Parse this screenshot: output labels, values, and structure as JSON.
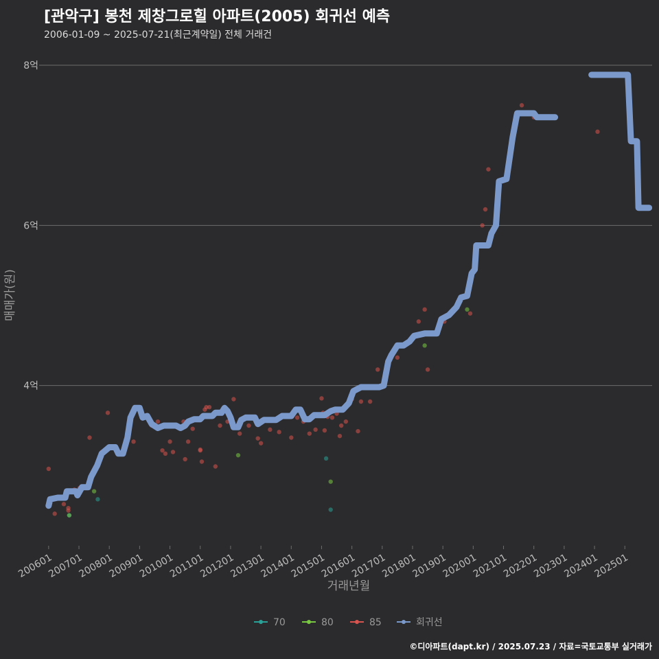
{
  "header": {
    "title": "[관악구] 봉천 제창그로힐 아파트(2005) 회귀선 예측",
    "subtitle": "2006-01-09 ~ 2025-07-21(최근계약일) 전체 거래건"
  },
  "footer": {
    "caption": "©디아파트(dapt.kr) / 2025.07.23 / 자료=국토교통부 실거래가"
  },
  "colors": {
    "s70": "#2aa198",
    "s80": "#7ac943",
    "s85": "#d9534f",
    "line": "#7b9acb",
    "grid": "#6e6e6e"
  },
  "chart_data": {
    "type": "scatter",
    "title": "[관악구] 봉천 제창그로힐 아파트(2005) 회귀선 예측",
    "xlabel": "거래년월",
    "ylabel": "매매가(원)",
    "ylim": [
      2.0,
      8.3
    ],
    "xlim": [
      2005.8,
      2025.9
    ],
    "yticks": [
      {
        "v": 4,
        "label": "4억"
      },
      {
        "v": 6,
        "label": "6억"
      },
      {
        "v": 8,
        "label": "8억"
      }
    ],
    "xticks": [
      {
        "v": 2006,
        "label": "200601"
      },
      {
        "v": 2007,
        "label": "200701"
      },
      {
        "v": 2008,
        "label": "200801"
      },
      {
        "v": 2009,
        "label": "200901"
      },
      {
        "v": 2010,
        "label": "201001"
      },
      {
        "v": 2011,
        "label": "201101"
      },
      {
        "v": 2012,
        "label": "201201"
      },
      {
        "v": 2013,
        "label": "201301"
      },
      {
        "v": 2014,
        "label": "201401"
      },
      {
        "v": 2015,
        "label": "201501"
      },
      {
        "v": 2016,
        "label": "201601"
      },
      {
        "v": 2017,
        "label": "201701"
      },
      {
        "v": 2018,
        "label": "201801"
      },
      {
        "v": 2019,
        "label": "201901"
      },
      {
        "v": 2020,
        "label": "202001"
      },
      {
        "v": 2021,
        "label": "202101"
      },
      {
        "v": 2022,
        "label": "202201"
      },
      {
        "v": 2023,
        "label": "202301"
      },
      {
        "v": 2024,
        "label": "202401"
      },
      {
        "v": 2025,
        "label": "202501"
      }
    ],
    "legend": {
      "position": "bottom",
      "items": [
        "70",
        "80",
        "85",
        "회귀선"
      ]
    },
    "series": [
      {
        "name": "70",
        "points": [
          [
            2006.68,
            2.38
          ],
          [
            2007.62,
            2.58
          ],
          [
            2015.15,
            3.09
          ],
          [
            2015.3,
            2.45
          ]
        ]
      },
      {
        "name": "80",
        "points": [
          [
            2006.68,
            2.38
          ],
          [
            2007.5,
            2.68
          ],
          [
            2012.25,
            3.13
          ],
          [
            2015.3,
            2.8
          ],
          [
            2018.4,
            4.5
          ],
          [
            2019.8,
            4.95
          ]
        ]
      },
      {
        "name": "85",
        "points": [
          [
            2006.0,
            2.96
          ],
          [
            2006.2,
            2.4
          ],
          [
            2006.5,
            2.52
          ],
          [
            2006.65,
            2.47
          ],
          [
            2006.65,
            2.44
          ],
          [
            2006.85,
            2.7
          ],
          [
            2007.02,
            2.72
          ],
          [
            2007.35,
            3.35
          ],
          [
            2007.75,
            3.17
          ],
          [
            2007.95,
            3.66
          ],
          [
            2008.8,
            3.3
          ],
          [
            2009.4,
            3.5
          ],
          [
            2009.6,
            3.55
          ],
          [
            2009.75,
            3.19
          ],
          [
            2009.85,
            3.15
          ],
          [
            2010.0,
            3.3
          ],
          [
            2010.1,
            3.17
          ],
          [
            2010.3,
            3.47
          ],
          [
            2010.45,
            3.55
          ],
          [
            2010.5,
            3.08
          ],
          [
            2010.6,
            3.3
          ],
          [
            2010.75,
            3.46
          ],
          [
            2011.0,
            3.19
          ],
          [
            2011.0,
            3.2
          ],
          [
            2011.05,
            3.05
          ],
          [
            2011.15,
            3.7
          ],
          [
            2011.2,
            3.73
          ],
          [
            2011.3,
            3.73
          ],
          [
            2011.5,
            2.99
          ],
          [
            2011.65,
            3.5
          ],
          [
            2011.9,
            3.55
          ],
          [
            2012.1,
            3.83
          ],
          [
            2012.3,
            3.4
          ],
          [
            2012.6,
            3.5
          ],
          [
            2012.9,
            3.34
          ],
          [
            2013.0,
            3.28
          ],
          [
            2013.3,
            3.45
          ],
          [
            2013.6,
            3.42
          ],
          [
            2014.0,
            3.35
          ],
          [
            2014.2,
            3.6
          ],
          [
            2014.4,
            3.55
          ],
          [
            2014.6,
            3.4
          ],
          [
            2014.8,
            3.45
          ],
          [
            2015.0,
            3.84
          ],
          [
            2015.05,
            3.66
          ],
          [
            2015.1,
            3.44
          ],
          [
            2015.15,
            3.62
          ],
          [
            2015.2,
            3.61
          ],
          [
            2015.35,
            3.6
          ],
          [
            2015.5,
            3.65
          ],
          [
            2015.6,
            3.37
          ],
          [
            2015.65,
            3.5
          ],
          [
            2015.8,
            3.55
          ],
          [
            2016.0,
            3.83
          ],
          [
            2016.2,
            3.43
          ],
          [
            2016.3,
            3.8
          ],
          [
            2016.6,
            3.8
          ],
          [
            2016.85,
            4.2
          ],
          [
            2017.0,
            4.0
          ],
          [
            2017.5,
            4.35
          ],
          [
            2018.2,
            4.8
          ],
          [
            2018.4,
            4.95
          ],
          [
            2018.5,
            4.2
          ],
          [
            2019.05,
            4.8
          ],
          [
            2019.5,
            5.05
          ],
          [
            2019.9,
            4.9
          ],
          [
            2020.3,
            6.0
          ],
          [
            2020.4,
            6.2
          ],
          [
            2020.5,
            6.7
          ],
          [
            2021.6,
            7.5
          ],
          [
            2022.0,
            7.35
          ],
          [
            2024.1,
            7.17
          ]
        ]
      }
    ],
    "regression": [
      [
        2006.0,
        2.5
      ],
      [
        2006.05,
        2.58
      ],
      [
        2006.3,
        2.6
      ],
      [
        2006.55,
        2.6
      ],
      [
        2006.6,
        2.68
      ],
      [
        2006.9,
        2.68
      ],
      [
        2006.95,
        2.63
      ],
      [
        2007.1,
        2.73
      ],
      [
        2007.3,
        2.73
      ],
      [
        2007.4,
        2.86
      ],
      [
        2007.6,
        3.0
      ],
      [
        2007.75,
        3.15
      ],
      [
        2008.0,
        3.23
      ],
      [
        2008.2,
        3.23
      ],
      [
        2008.3,
        3.15
      ],
      [
        2008.45,
        3.15
      ],
      [
        2008.6,
        3.35
      ],
      [
        2008.7,
        3.6
      ],
      [
        2008.85,
        3.72
      ],
      [
        2009.0,
        3.72
      ],
      [
        2009.1,
        3.6
      ],
      [
        2009.25,
        3.62
      ],
      [
        2009.4,
        3.52
      ],
      [
        2009.6,
        3.47
      ],
      [
        2009.8,
        3.5
      ],
      [
        2010.2,
        3.5
      ],
      [
        2010.35,
        3.47
      ],
      [
        2010.5,
        3.5
      ],
      [
        2010.6,
        3.55
      ],
      [
        2010.8,
        3.58
      ],
      [
        2011.0,
        3.58
      ],
      [
        2011.1,
        3.62
      ],
      [
        2011.4,
        3.62
      ],
      [
        2011.5,
        3.66
      ],
      [
        2011.7,
        3.66
      ],
      [
        2011.8,
        3.72
      ],
      [
        2011.9,
        3.68
      ],
      [
        2012.0,
        3.6
      ],
      [
        2012.1,
        3.48
      ],
      [
        2012.25,
        3.48
      ],
      [
        2012.35,
        3.57
      ],
      [
        2012.5,
        3.6
      ],
      [
        2012.8,
        3.6
      ],
      [
        2012.9,
        3.52
      ],
      [
        2013.1,
        3.57
      ],
      [
        2013.5,
        3.57
      ],
      [
        2013.7,
        3.62
      ],
      [
        2014.0,
        3.62
      ],
      [
        2014.15,
        3.7
      ],
      [
        2014.3,
        3.7
      ],
      [
        2014.45,
        3.58
      ],
      [
        2014.6,
        3.58
      ],
      [
        2014.75,
        3.63
      ],
      [
        2015.1,
        3.63
      ],
      [
        2015.3,
        3.68
      ],
      [
        2015.45,
        3.7
      ],
      [
        2015.7,
        3.7
      ],
      [
        2015.9,
        3.78
      ],
      [
        2016.05,
        3.93
      ],
      [
        2016.3,
        3.98
      ],
      [
        2016.9,
        3.98
      ],
      [
        2017.05,
        4.0
      ],
      [
        2017.2,
        4.3
      ],
      [
        2017.3,
        4.38
      ],
      [
        2017.5,
        4.5
      ],
      [
        2017.7,
        4.5
      ],
      [
        2017.9,
        4.55
      ],
      [
        2018.05,
        4.62
      ],
      [
        2018.4,
        4.65
      ],
      [
        2018.8,
        4.65
      ],
      [
        2018.95,
        4.83
      ],
      [
        2019.2,
        4.88
      ],
      [
        2019.45,
        4.98
      ],
      [
        2019.6,
        5.1
      ],
      [
        2019.8,
        5.12
      ],
      [
        2019.95,
        5.4
      ],
      [
        2020.05,
        5.45
      ],
      [
        2020.1,
        5.75
      ],
      [
        2020.5,
        5.75
      ],
      [
        2020.6,
        5.9
      ],
      [
        2020.75,
        6.0
      ],
      [
        2020.85,
        6.55
      ],
      [
        2021.1,
        6.58
      ],
      [
        2021.3,
        7.1
      ],
      [
        2021.45,
        7.4
      ],
      [
        2022.0,
        7.4
      ],
      [
        2022.1,
        7.35
      ],
      [
        2022.7,
        7.35
      ]
    ],
    "regression2": [
      [
        2023.9,
        7.88
      ],
      [
        2025.1,
        7.88
      ],
      [
        2025.2,
        7.05
      ],
      [
        2025.4,
        7.05
      ],
      [
        2025.45,
        6.22
      ],
      [
        2025.8,
        6.22
      ]
    ]
  }
}
